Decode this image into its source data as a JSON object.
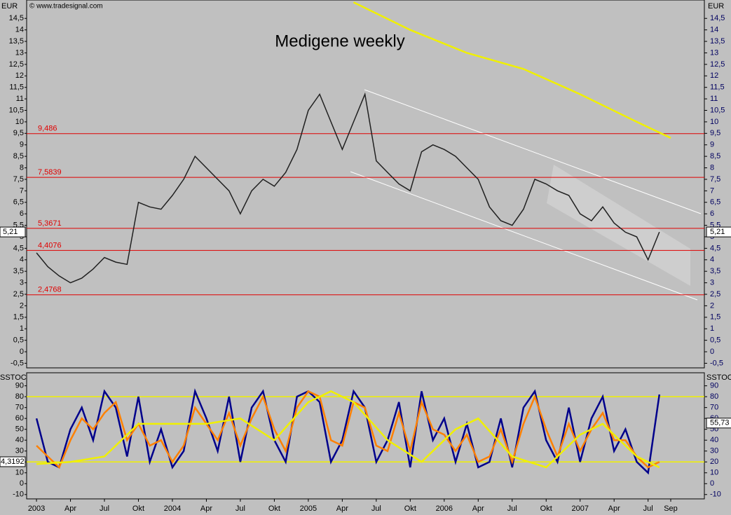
{
  "chart_data": [
    {
      "type": "line",
      "title": "Medigene weekly",
      "source": "© www.tradesignal.com",
      "axis_label": "EUR",
      "xlim": [
        -0.87,
        58.97
      ],
      "ylim": [
        -0.7,
        15.3
      ],
      "xticks": [
        {
          "value": 0,
          "label": "2003"
        },
        {
          "value": 3,
          "label": "Apr"
        },
        {
          "value": 6,
          "label": "Jul"
        },
        {
          "value": 9,
          "label": "Okt"
        },
        {
          "value": 12,
          "label": "2004"
        },
        {
          "value": 15,
          "label": "Apr"
        },
        {
          "value": 18,
          "label": "Jul"
        },
        {
          "value": 21,
          "label": "Okt"
        },
        {
          "value": 24,
          "label": "2005"
        },
        {
          "value": 27,
          "label": "Apr"
        },
        {
          "value": 30,
          "label": "Jul"
        },
        {
          "value": 33,
          "label": "Okt"
        },
        {
          "value": 36,
          "label": "2006"
        },
        {
          "value": 39,
          "label": "Apr"
        },
        {
          "value": 42,
          "label": "Jul"
        },
        {
          "value": 45,
          "label": "Okt"
        },
        {
          "value": 48,
          "label": "2007"
        },
        {
          "value": 51,
          "label": "Apr"
        },
        {
          "value": 54,
          "label": "Jul"
        },
        {
          "value": 56,
          "label": "Sep"
        }
      ],
      "yticks": [
        {
          "value": -0.5,
          "label": "-0,5"
        },
        0,
        {
          "value": 0.5,
          "label": "0,5"
        },
        1,
        {
          "value": 1.5,
          "label": "1,5"
        },
        2,
        {
          "value": 2.5,
          "label": "2,5"
        },
        3,
        {
          "value": 3.5,
          "label": "3,5"
        },
        4,
        {
          "value": 4.5,
          "label": "4,5"
        },
        5,
        {
          "value": 5.5,
          "label": "5,5"
        },
        6,
        {
          "value": 6.5,
          "label": "6,5"
        },
        7,
        {
          "value": 7.5,
          "label": "7,5"
        },
        8,
        {
          "value": 8.5,
          "label": "8,5"
        },
        9,
        {
          "value": 9.5,
          "label": "9,5"
        },
        10,
        {
          "value": 10.5,
          "label": "10,5"
        },
        11,
        {
          "value": 11.5,
          "label": "11,5"
        },
        12,
        {
          "value": 12.5,
          "label": "12,5"
        },
        13,
        {
          "value": 13.5,
          "label": "13,5"
        },
        14,
        {
          "value": 14.5,
          "label": "14,5"
        }
      ],
      "levels": [
        {
          "value": 9.486,
          "label": "9,486"
        },
        {
          "value": 7.5839,
          "label": "7,5839"
        },
        {
          "value": 5.3671,
          "label": "5,3671"
        },
        {
          "value": 4.4076,
          "label": "4,4076"
        },
        {
          "value": 2.4768,
          "label": "2,4768"
        }
      ],
      "level_color": "#e00000",
      "last_price": {
        "value": 5.21,
        "label": "5,21"
      },
      "x": [
        0,
        1,
        2,
        3,
        4,
        5,
        6,
        7,
        8,
        9,
        10,
        11,
        12,
        13,
        14,
        15,
        16,
        17,
        18,
        19,
        20,
        21,
        22,
        23,
        24,
        25,
        26,
        27,
        28,
        29,
        30,
        31,
        32,
        33,
        34,
        35,
        36,
        37,
        38,
        39,
        40,
        41,
        42,
        43,
        44,
        45,
        46,
        47,
        48,
        49,
        50,
        51,
        52,
        53,
        54,
        55
      ],
      "series": [
        {
          "color": "#202020",
          "values": [
            4.3,
            3.7,
            3.3,
            3.0,
            3.2,
            3.6,
            4.1,
            3.9,
            3.8,
            6.5,
            6.3,
            6.2,
            6.8,
            7.5,
            8.5,
            8.0,
            7.5,
            7.0,
            6.0,
            7.0,
            7.5,
            7.2,
            7.8,
            8.8,
            10.5,
            11.2,
            10.0,
            8.8,
            10.0,
            11.2,
            8.3,
            7.8,
            7.3,
            7.0,
            8.7,
            9.0,
            8.8,
            8.5,
            8.0,
            7.5,
            6.3,
            5.7,
            5.5,
            6.2,
            7.5,
            7.3,
            7.0,
            6.8,
            6.0,
            5.7,
            6.3,
            5.6,
            5.2,
            5.0,
            4.0,
            5.21
          ]
        },
        {
          "color": "#f0f000",
          "x": [
            28,
            33,
            38,
            43,
            48,
            53,
            56
          ],
          "values": [
            15.2,
            14.0,
            13.0,
            12.3,
            11.2,
            10.0,
            9.3
          ]
        }
      ]
    },
    {
      "type": "line",
      "axis_label": "SSTOC",
      "left_marker": "4,3192",
      "xlim": [
        -0.87,
        58.97
      ],
      "ylim": [
        -14,
        102
      ],
      "yticks": [
        -10,
        0,
        10,
        20,
        30,
        40,
        50,
        60,
        70,
        80,
        90
      ],
      "bands": [
        80,
        20
      ],
      "band_color": "#f0f000",
      "last_value": {
        "value": 55.73,
        "label": "55,73"
      },
      "x": [
        0,
        1,
        2,
        3,
        4,
        5,
        6,
        7,
        8,
        9,
        10,
        11,
        12,
        13,
        14,
        15,
        16,
        17,
        18,
        19,
        20,
        21,
        22,
        23,
        24,
        25,
        26,
        27,
        28,
        29,
        30,
        31,
        32,
        33,
        34,
        35,
        36,
        37,
        38,
        39,
        40,
        41,
        42,
        43,
        44,
        45,
        46,
        47,
        48,
        49,
        50,
        51,
        52,
        53,
        54,
        55
      ],
      "series": [
        {
          "color": "#00008b",
          "values": [
            60,
            20,
            15,
            50,
            70,
            40,
            85,
            70,
            25,
            80,
            20,
            50,
            15,
            30,
            85,
            60,
            30,
            80,
            20,
            70,
            85,
            40,
            20,
            80,
            85,
            75,
            20,
            40,
            85,
            70,
            20,
            40,
            75,
            15,
            85,
            40,
            60,
            20,
            55,
            15,
            20,
            60,
            15,
            70,
            85,
            40,
            20,
            70,
            20,
            60,
            80,
            30,
            50,
            20,
            10,
            82
          ]
        },
        {
          "color": "#ff8000",
          "values": [
            35,
            25,
            15,
            40,
            60,
            50,
            65,
            75,
            40,
            55,
            35,
            40,
            20,
            35,
            70,
            55,
            40,
            65,
            35,
            60,
            80,
            50,
            30,
            70,
            85,
            80,
            40,
            35,
            75,
            70,
            35,
            30,
            65,
            30,
            75,
            50,
            45,
            30,
            45,
            20,
            25,
            50,
            20,
            55,
            80,
            50,
            25,
            55,
            30,
            50,
            65,
            40,
            40,
            25,
            15,
            20
          ]
        },
        {
          "color": "#f0f000",
          "x": [
            0,
            3,
            6,
            9,
            12,
            15,
            18,
            21,
            24,
            26,
            28,
            31,
            34,
            37,
            39,
            42,
            45,
            48,
            50,
            53,
            55
          ],
          "values": [
            18,
            20,
            25,
            55,
            55,
            55,
            60,
            40,
            75,
            85,
            75,
            40,
            20,
            50,
            60,
            25,
            15,
            45,
            55,
            25,
            15
          ]
        }
      ]
    }
  ]
}
